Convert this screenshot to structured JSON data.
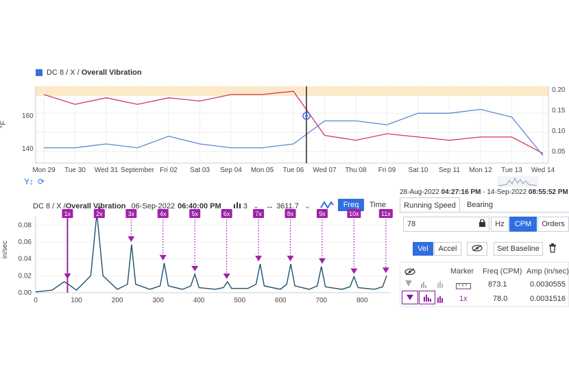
{
  "trend": {
    "title_prefix": "DC 8 / X / ",
    "title_bold": "Overall Vibration",
    "legend_color": "#3b6fd8",
    "left_axis_label": "°F",
    "left_ticks": [
      "160",
      "140"
    ],
    "right_ticks": [
      "0.20",
      "0.15",
      "0.10",
      "0.05"
    ],
    "x_labels": [
      "Mon 29",
      "Tue 30",
      "Wed 31",
      "September",
      "Fri 02",
      "Sat 03",
      "Sep 04",
      "Mon 05",
      "Tue 06",
      "Wed 07",
      "Thu 08",
      "Fri 09",
      "Sat 10",
      "Sep 11",
      "Mon 12",
      "Tue 13",
      "Wed 14"
    ],
    "range_start_date": "28-Aug-2022",
    "range_start_time": "04:27:16 PM",
    "range_sep": " - ",
    "range_end_date": "14-Sep-2022",
    "range_end_time": "08:55:52 PM",
    "alarm_color": "#fde9c4",
    "vib_color": "#5b84d6",
    "temp_color": "#d63459",
    "zoom_y_icon": "Y↕",
    "reset_icon": "⟳"
  },
  "spectrum": {
    "title_prefix": "DC 8 / X / ",
    "title_bold": "Overall Vibration",
    "date": "06-Sep-2022",
    "time": "06:40:00 PM",
    "bars_icon": "bars-icon",
    "averages": "3",
    "width_value": "3611.7",
    "freq_tab": "Freq",
    "time_tab": "Time",
    "y_label": "in/sec",
    "y_ticks": [
      "0.08",
      "0.06",
      "0.04",
      "0.02",
      "0.00"
    ],
    "x_ticks": [
      "0",
      "100",
      "200",
      "300",
      "400",
      "500",
      "600",
      "700",
      "800"
    ],
    "marker_color": "#a020a8",
    "harmonics": [
      "1x",
      "2x",
      "3x",
      "4x",
      "5x",
      "6x",
      "7x",
      "8x",
      "9x",
      "10x",
      "11x"
    ]
  },
  "chart_data": [
    {
      "type": "line",
      "title": "DC 8 / X / Overall Vibration",
      "xlabel": "",
      "ylabel": "°F",
      "y2label": "",
      "series": [
        {
          "name": "",
          "axis": "right",
          "color": "#5b84d6",
          "x": [
            "Aug 29",
            "Aug 30",
            "Aug 31",
            "Sep 01",
            "Sep 02",
            "Sep 03",
            "Sep 04",
            "Sep 05",
            "Sep 06",
            "Sep 07",
            "Sep 08",
            "Sep 09",
            "Sep 10",
            "Sep 11",
            "Sep 12",
            "Sep 13",
            "Sep 14"
          ],
          "values": [
            0.06,
            0.06,
            0.07,
            0.06,
            0.09,
            0.07,
            0.06,
            0.06,
            0.07,
            0.13,
            0.13,
            0.12,
            0.15,
            0.15,
            0.16,
            0.14,
            0.04
          ]
        },
        {
          "name": "",
          "axis": "left",
          "color": "#d63459",
          "x": [
            "Aug 29",
            "Aug 30",
            "Aug 31",
            "Sep 01",
            "Sep 02",
            "Sep 03",
            "Sep 04",
            "Sep 05",
            "Sep 06",
            "Sep 07",
            "Sep 08",
            "Sep 09",
            "Sep 10",
            "Sep 11",
            "Sep 12",
            "Sep 13",
            "Sep 14"
          ],
          "values": [
            172,
            166,
            170,
            166,
            170,
            168,
            172,
            172,
            174,
            147,
            144,
            148,
            146,
            144,
            146,
            146,
            136
          ]
        }
      ],
      "ylim_left": [
        130,
        177
      ],
      "ylim_right": [
        0.02,
        0.22
      ],
      "alarm_band": "upper",
      "cursor": "Wed 07"
    },
    {
      "type": "line",
      "title": "DC 8 / X / Overall Vibration",
      "xlabel": "",
      "ylabel": "in/sec",
      "x": [
        0,
        40,
        70,
        80,
        100,
        135,
        150,
        165,
        200,
        225,
        235,
        245,
        280,
        305,
        315,
        325,
        360,
        380,
        390,
        400,
        440,
        460,
        470,
        480,
        520,
        540,
        550,
        560,
        600,
        615,
        625,
        635,
        670,
        690,
        700,
        710,
        750,
        770,
        780,
        790,
        830,
        850,
        860
      ],
      "values": [
        0.001,
        0.003,
        0.013,
        0.01,
        0.003,
        0.02,
        0.094,
        0.02,
        0.004,
        0.01,
        0.057,
        0.01,
        0.004,
        0.008,
        0.035,
        0.008,
        0.004,
        0.008,
        0.022,
        0.006,
        0.004,
        0.006,
        0.013,
        0.005,
        0.005,
        0.01,
        0.034,
        0.008,
        0.004,
        0.01,
        0.034,
        0.008,
        0.004,
        0.008,
        0.031,
        0.007,
        0.004,
        0.007,
        0.019,
        0.006,
        0.004,
        0.007,
        0.02
      ],
      "xlim": [
        0,
        870
      ],
      "ylim": [
        0,
        0.09
      ],
      "harmonic_markers": [
        {
          "label": "1x",
          "x": 78
        },
        {
          "label": "2x",
          "x": 156
        },
        {
          "label": "3x",
          "x": 234
        },
        {
          "label": "4x",
          "x": 312
        },
        {
          "label": "5x",
          "x": 390
        },
        {
          "label": "6x",
          "x": 468
        },
        {
          "label": "7x",
          "x": 546
        },
        {
          "label": "8x",
          "x": 624
        },
        {
          "label": "9x",
          "x": 702
        },
        {
          "label": "10x",
          "x": 780
        },
        {
          "label": "11x",
          "x": 858
        }
      ]
    }
  ],
  "panel": {
    "tabs": [
      "Running Speed",
      "Bearing"
    ],
    "speed_value": "78",
    "units": [
      "Hz",
      "CPM",
      "Orders"
    ],
    "active_unit": "CPM",
    "modes": [
      "Vel",
      "Accel"
    ],
    "active_mode": "Vel",
    "set_baseline": "Set Baseline",
    "table_headers": [
      "Marker",
      "Freq (CPM)",
      "Amp (in/sec)"
    ],
    "rows": [
      {
        "marker": "",
        "freq": "873.1",
        "amp": "0.0030555"
      },
      {
        "marker": "1x",
        "freq": "78.0",
        "amp": "0.0031516"
      }
    ]
  }
}
